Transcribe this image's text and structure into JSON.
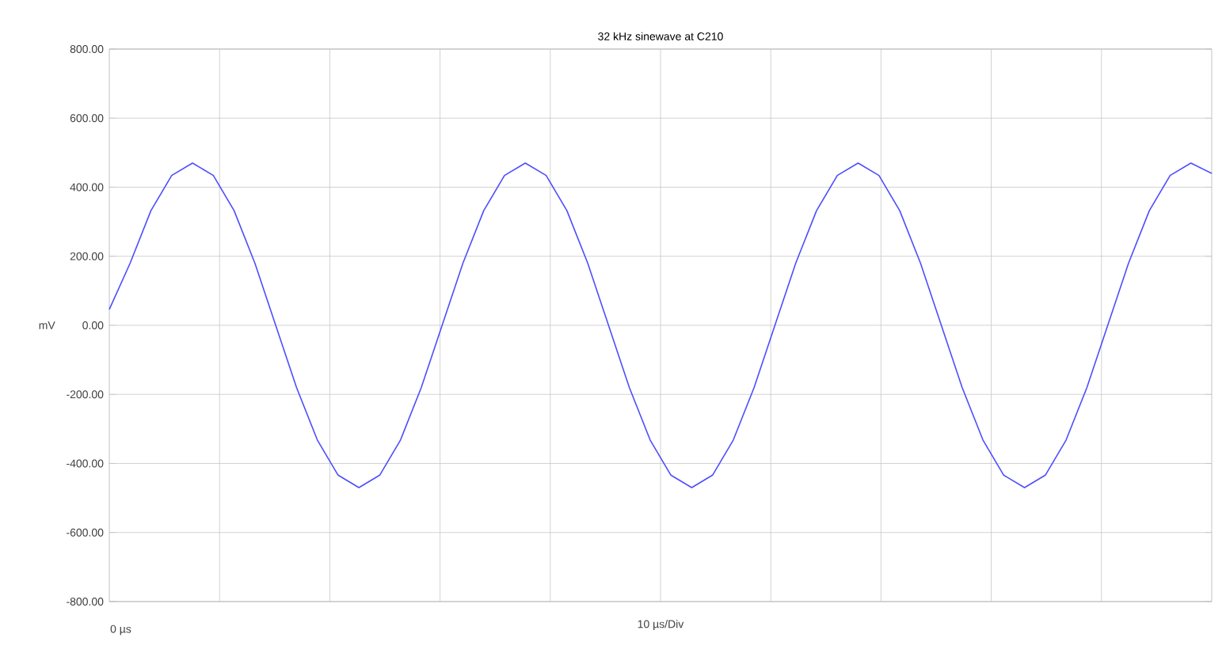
{
  "chart_data": {
    "type": "line",
    "title": "32 kHz sinewave at C210",
    "xlabel": "10 µs/Div",
    "ylabel": "mV",
    "categories": [
      null,
      null,
      null,
      null,
      null,
      null,
      null,
      null,
      null,
      null,
      null,
      null,
      null,
      null,
      null,
      null,
      null,
      null,
      null,
      null,
      null,
      null,
      null,
      null,
      null,
      null,
      null,
      null,
      null,
      null,
      null,
      null,
      null,
      null,
      null,
      null,
      null,
      null,
      null,
      null,
      null,
      null,
      null,
      null,
      null,
      null,
      null,
      null,
      null,
      null,
      null,
      null,
      null,
      null
    ],
    "series": [
      {
        "color": "#4d4dff",
        "values": [
          46,
          180,
          332,
          434,
          470,
          434,
          332,
          180,
          0,
          -180,
          -332,
          -434,
          -470,
          -434,
          -332,
          -180,
          0,
          180,
          332,
          434,
          470,
          434,
          332,
          180,
          0,
          -180,
          -332,
          -434,
          -470,
          -434,
          -332,
          -180,
          0,
          180,
          332,
          434,
          470,
          434,
          332,
          180,
          0,
          -180,
          -332,
          -434,
          -470,
          -434,
          -332,
          -180,
          0,
          180,
          332,
          434,
          470,
          440
        ]
      }
    ],
    "annotations": [
      "0 µs"
    ],
    "ylim": [
      -800,
      800
    ],
    "yticks": [
      {
        "value": -800,
        "label": "-800.00"
      },
      {
        "value": -600,
        "label": "-600.00"
      },
      {
        "value": -400,
        "label": "-400.00"
      },
      {
        "value": -200,
        "label": "-200.00"
      },
      {
        "value": 0,
        "label": "0.00"
      },
      {
        "value": 200,
        "label": "200.00"
      },
      {
        "value": 400,
        "label": "400.00"
      },
      {
        "value": 600,
        "label": "600.00"
      },
      {
        "value": 800,
        "label": "800.00"
      }
    ],
    "grid": true,
    "marker": "none",
    "line_style": "solid"
  }
}
